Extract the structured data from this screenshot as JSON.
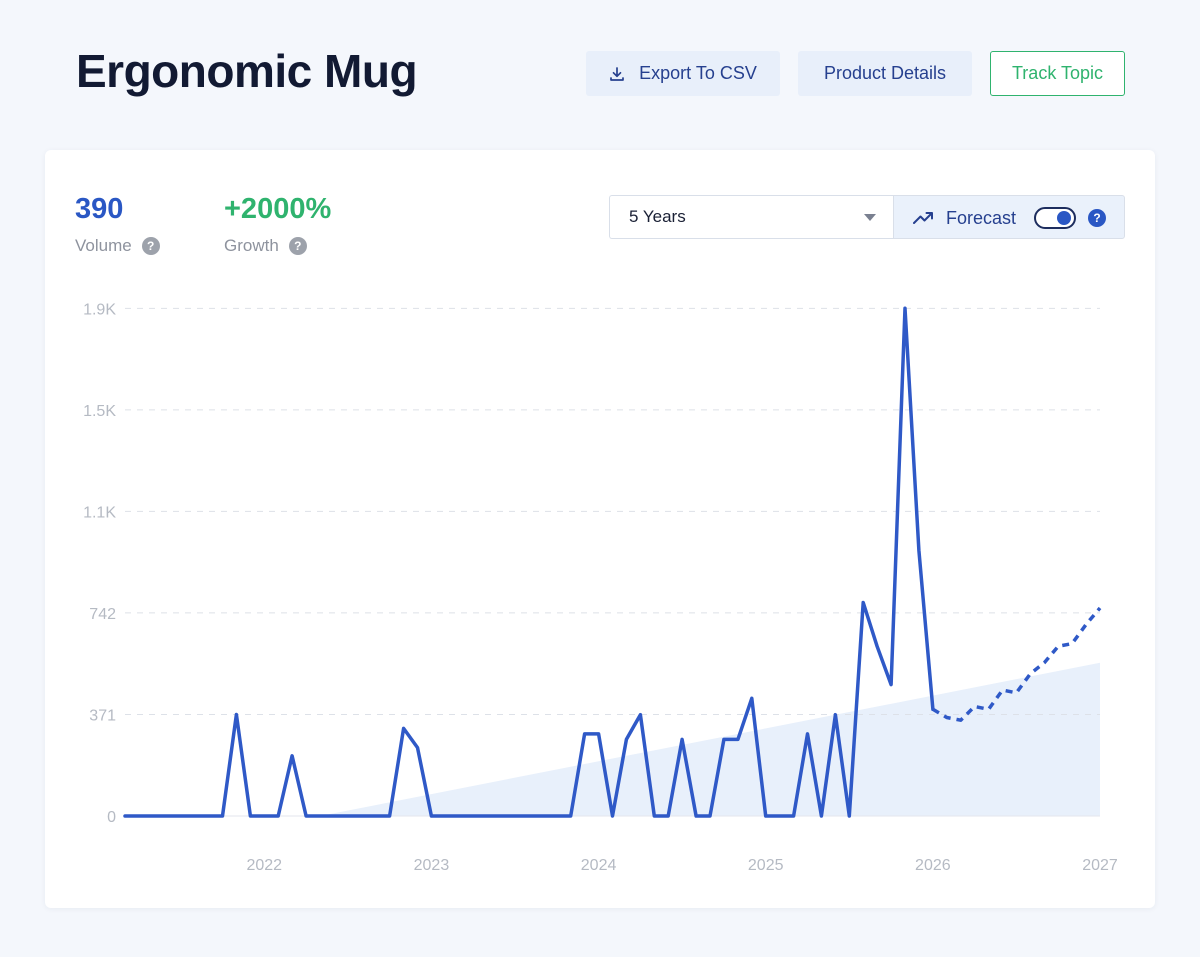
{
  "header": {
    "title": "Ergonomic Mug",
    "export_label": "Export To CSV",
    "details_label": "Product Details",
    "track_label": "Track Topic"
  },
  "stats": {
    "volume_value": "390",
    "volume_label": "Volume",
    "growth_value": "+2000%",
    "growth_label": "Growth",
    "help_glyph": "?"
  },
  "controls": {
    "range_selected": "5 Years",
    "forecast_label": "Forecast",
    "forecast_on": true,
    "help_glyph": "?"
  },
  "icons": {
    "export": "download-icon",
    "forecast": "trend-up-icon",
    "caret": "chevron-down-icon"
  },
  "colors": {
    "line": "#2f59c7",
    "trend_fill": "#e8f0fb",
    "grid": "#dde1e8",
    "accent_green": "#2fb36e",
    "title": "#121a33"
  },
  "chart_data": {
    "type": "line",
    "ylim": [
      0,
      1900
    ],
    "yticks": [
      {
        "value": 0,
        "label": "0"
      },
      {
        "value": 371,
        "label": "371"
      },
      {
        "value": 742,
        "label": "742"
      },
      {
        "value": 1113,
        "label": "1.1K"
      },
      {
        "value": 1484,
        "label": "1.5K"
      },
      {
        "value": 1855,
        "label": "1.9K"
      }
    ],
    "xlim": [
      "2021-03",
      "2027-01"
    ],
    "xticks": [
      "2022",
      "2023",
      "2024",
      "2025",
      "2026",
      "2027"
    ],
    "grid": true,
    "series": [
      {
        "style": "solid",
        "points": [
          [
            "2021-03",
            0
          ],
          [
            "2021-10",
            0
          ],
          [
            "2021-11",
            371
          ],
          [
            "2021-12",
            0
          ],
          [
            "2022-02",
            0
          ],
          [
            "2022-03",
            220
          ],
          [
            "2022-04",
            0
          ],
          [
            "2022-10",
            0
          ],
          [
            "2022-11",
            320
          ],
          [
            "2022-12",
            250
          ],
          [
            "2023-01",
            0
          ],
          [
            "2023-11",
            0
          ],
          [
            "2023-12",
            300
          ],
          [
            "2024-01",
            300
          ],
          [
            "2024-02",
            0
          ],
          [
            "2024-03",
            280
          ],
          [
            "2024-04",
            370
          ],
          [
            "2024-05",
            0
          ],
          [
            "2024-06",
            0
          ],
          [
            "2024-07",
            280
          ],
          [
            "2024-08",
            0
          ],
          [
            "2024-09",
            0
          ],
          [
            "2024-10",
            280
          ],
          [
            "2024-11",
            280
          ],
          [
            "2024-12",
            430
          ],
          [
            "2025-01",
            0
          ],
          [
            "2025-03",
            0
          ],
          [
            "2025-04",
            300
          ],
          [
            "2025-05",
            0
          ],
          [
            "2025-06",
            370
          ],
          [
            "2025-07",
            0
          ],
          [
            "2025-08",
            780
          ],
          [
            "2025-09",
            620
          ],
          [
            "2025-10",
            480
          ],
          [
            "2025-11",
            1855
          ],
          [
            "2025-12",
            970
          ],
          [
            "2026-01",
            390
          ]
        ]
      },
      {
        "style": "dashed",
        "points": [
          [
            "2026-01",
            390
          ],
          [
            "2026-02",
            360
          ],
          [
            "2026-03",
            350
          ],
          [
            "2026-04",
            400
          ],
          [
            "2026-05",
            390
          ],
          [
            "2026-06",
            460
          ],
          [
            "2026-07",
            450
          ],
          [
            "2026-08",
            520
          ],
          [
            "2026-09",
            560
          ],
          [
            "2026-10",
            620
          ],
          [
            "2026-11",
            630
          ],
          [
            "2026-12",
            700
          ],
          [
            "2027-01",
            760
          ]
        ]
      }
    ],
    "trend_area": {
      "points": [
        [
          "2022-05",
          0
        ],
        [
          "2027-01",
          560
        ],
        [
          "2027-01",
          0
        ]
      ]
    }
  }
}
